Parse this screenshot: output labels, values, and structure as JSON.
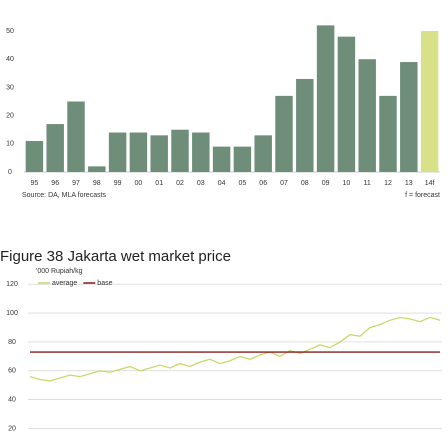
{
  "chart_data": [
    {
      "type": "bar",
      "categories": [
        "95",
        "96",
        "97",
        "98",
        "99",
        "00",
        "01",
        "02",
        "03",
        "04",
        "05",
        "06",
        "07",
        "08",
        "09",
        "10",
        "11",
        "12",
        "13",
        "14f"
      ],
      "values": [
        11,
        17,
        25,
        2,
        14,
        14,
        13,
        15,
        14,
        9,
        9,
        13,
        27,
        33,
        52,
        48,
        40,
        27,
        39,
        50
      ],
      "colors": [
        "#6e8e7a",
        "#6e8e7a",
        "#6e8e7a",
        "#6e8e7a",
        "#6e8e7a",
        "#6e8e7a",
        "#6e8e7a",
        "#6e8e7a",
        "#6e8e7a",
        "#6e8e7a",
        "#6e8e7a",
        "#6e8e7a",
        "#6e8e7a",
        "#6e8e7a",
        "#6e8e7a",
        "#6e8e7a",
        "#6e8e7a",
        "#6e8e7a",
        "#6e8e7a",
        "#d9e08a"
      ],
      "ylim": [
        0,
        61
      ],
      "yticks": [
        0,
        10,
        20,
        30,
        40,
        50
      ],
      "source": "Source: DA, MLA forecasts",
      "note": "f = forecast"
    },
    {
      "type": "line",
      "title": "Figure 38 Jakarta wet market price",
      "y_label": "'000 Rupiah/kg",
      "categories": [
        null,
        null,
        null,
        null,
        null,
        null,
        null,
        null,
        null,
        null,
        null,
        null,
        null,
        null,
        null,
        null,
        null,
        null,
        null,
        null,
        null,
        null,
        null,
        null,
        null,
        null,
        null,
        null,
        null,
        null,
        null,
        null,
        null,
        null,
        null,
        null,
        null,
        null,
        null,
        null,
        null,
        null
      ],
      "series": [
        {
          "name": "average",
          "color": "#c8d86a",
          "values": [
            56,
            54,
            53,
            55,
            57,
            56,
            58,
            60,
            59,
            61,
            63,
            60,
            62,
            64,
            62,
            65,
            63,
            66,
            68,
            65,
            67,
            70,
            68,
            71,
            73,
            70,
            74,
            72,
            75,
            78,
            76,
            80,
            85,
            84,
            90,
            92,
            95,
            97,
            96,
            94,
            97,
            95
          ]
        },
        {
          "name": "base",
          "color": "#8b1a1a",
          "values": [
            73,
            73,
            73,
            73,
            73,
            73,
            73,
            73,
            73,
            73,
            73,
            73,
            73,
            73,
            73,
            73,
            73,
            73,
            73,
            73,
            73,
            73,
            73,
            73,
            73,
            73,
            73,
            73,
            73,
            73,
            73,
            73,
            73,
            73,
            73,
            73,
            73,
            73,
            73,
            73,
            73,
            73
          ]
        }
      ],
      "ylim": [
        10,
        125
      ],
      "yticks": [
        20,
        40,
        60,
        80,
        100,
        120
      ],
      "grid": true
    }
  ]
}
